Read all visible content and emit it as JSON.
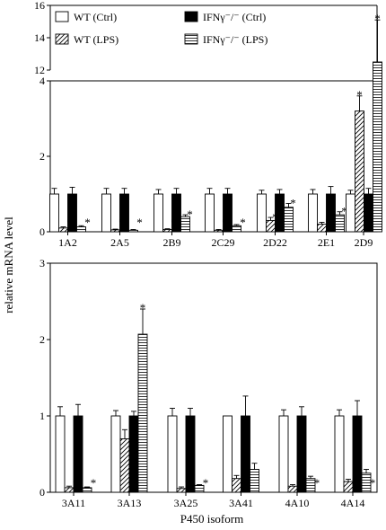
{
  "chart_data": {
    "type": "bar",
    "ylabel": "relative mRNA level",
    "xlabel": "P450 isoform",
    "legend": {
      "placement": "top",
      "entries": [
        {
          "label": "WT (Ctrl)",
          "pattern": "white"
        },
        {
          "label": "IFNγ⁻/⁻ (Ctrl)",
          "pattern": "black"
        },
        {
          "label": "WT (LPS)",
          "pattern": "diagonal"
        },
        {
          "label": "IFNγ⁻/⁻ (LPS)",
          "pattern": "horizontal"
        }
      ]
    },
    "panels": [
      {
        "id": "top",
        "categories": [
          "1A2",
          "2A5",
          "2B9",
          "2C29",
          "2D22",
          "2E1",
          "2D9"
        ],
        "ylim": [
          0,
          16
        ],
        "axis_break": {
          "lower": [
            0,
            4
          ],
          "upper": [
            12,
            16
          ]
        },
        "yticks_lower": [
          "0",
          "2",
          "4"
        ],
        "yticks_upper": [
          "12",
          "14",
          "16"
        ],
        "series": [
          {
            "name": "WT (Ctrl)",
            "pattern": "white",
            "values": [
              1.0,
              1.0,
              1.0,
              1.0,
              1.0,
              1.0,
              1.0
            ],
            "errors": [
              0.15,
              0.15,
              0.12,
              0.15,
              0.1,
              0.12,
              0.1
            ],
            "sig": [
              false,
              false,
              false,
              false,
              false,
              false,
              false
            ]
          },
          {
            "name": "WT (LPS)",
            "pattern": "diagonal",
            "values": [
              0.1,
              0.05,
              0.06,
              0.04,
              0.3,
              0.2,
              3.2
            ],
            "errors": [
              0.03,
              0.02,
              0.02,
              0.02,
              0.08,
              0.05,
              0.4
            ],
            "sig": [
              true,
              true,
              true,
              true,
              true,
              true,
              true
            ]
          },
          {
            "name": "IFNγ⁻/⁻ (Ctrl)",
            "pattern": "black",
            "values": [
              1.0,
              1.0,
              1.0,
              1.0,
              1.0,
              1.0,
              1.0
            ],
            "errors": [
              0.18,
              0.15,
              0.15,
              0.15,
              0.12,
              0.2,
              0.15
            ],
            "sig": [
              false,
              false,
              false,
              false,
              false,
              false,
              false
            ]
          },
          {
            "name": "IFNγ⁻/⁻ (LPS)",
            "pattern": "horizontal",
            "values": [
              0.13,
              0.04,
              0.4,
              0.16,
              0.65,
              0.45,
              12.5
            ],
            "errors": [
              0.03,
              0.02,
              0.05,
              0.03,
              0.1,
              0.08,
              2.6
            ],
            "sig": [
              true,
              true,
              true,
              true,
              true,
              true,
              true
            ]
          }
        ]
      },
      {
        "id": "bottom",
        "categories": [
          "3A11",
          "3A13",
          "3A25",
          "3A41",
          "4A10",
          "4A14"
        ],
        "ylim": [
          0,
          3
        ],
        "yticks": [
          "0",
          "1",
          "2",
          "3"
        ],
        "series": [
          {
            "name": "WT (Ctrl)",
            "pattern": "white",
            "values": [
              1.0,
              1.0,
              1.0,
              1.0,
              1.0,
              1.0
            ],
            "errors": [
              0.12,
              0.07,
              0.1,
              0.0,
              0.08,
              0.08
            ],
            "sig": [
              false,
              false,
              false,
              false,
              false,
              false
            ]
          },
          {
            "name": "WT (LPS)",
            "pattern": "diagonal",
            "values": [
              0.06,
              0.7,
              0.05,
              0.18,
              0.08,
              0.14
            ],
            "errors": [
              0.02,
              0.12,
              0.02,
              0.04,
              0.02,
              0.03
            ],
            "sig": [
              true,
              false,
              true,
              true,
              true,
              true
            ]
          },
          {
            "name": "IFNγ⁻/⁻ (Ctrl)",
            "pattern": "black",
            "values": [
              1.0,
              1.0,
              1.0,
              1.0,
              1.0,
              1.0
            ],
            "errors": [
              0.15,
              0.06,
              0.1,
              0.26,
              0.12,
              0.2
            ],
            "sig": [
              false,
              false,
              false,
              false,
              false,
              false
            ]
          },
          {
            "name": "IFNγ⁻/⁻ (LPS)",
            "pattern": "horizontal",
            "values": [
              0.06,
              2.07,
              0.09,
              0.3,
              0.18,
              0.25
            ],
            "errors": [
              0.01,
              0.33,
              0.01,
              0.08,
              0.03,
              0.05
            ],
            "sig": [
              true,
              true,
              true,
              false,
              true,
              true
            ]
          }
        ]
      }
    ],
    "significance_marker": "*"
  }
}
